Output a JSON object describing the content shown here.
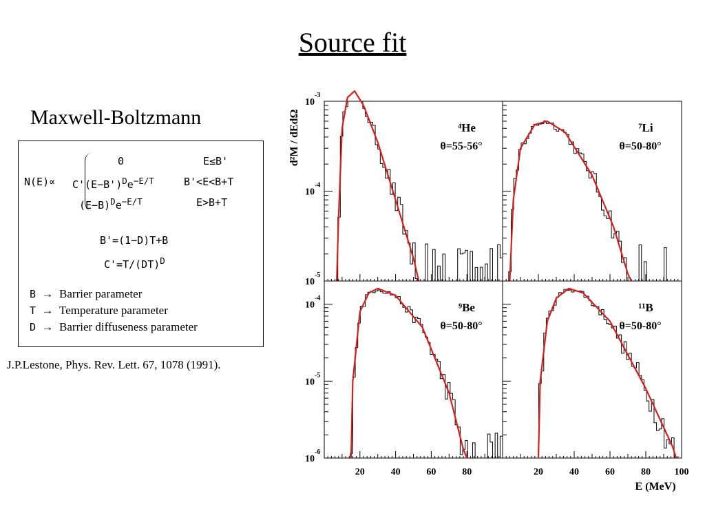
{
  "slide": {
    "title": "Source fit",
    "subtitle": "Maxwell-Boltzmann",
    "reference": "J.P.Lestone, Phys. Rev. Lett. 67, 1078 (1991)."
  },
  "formula": {
    "lhs": "N(E)∝",
    "cases": [
      {
        "expr": "0",
        "cond": "E≤B'"
      },
      {
        "expr": "C'(E−B')",
        "sup": "D",
        "expr2": "e",
        "exp": "−E/T",
        "cond": "B'<E<B+T"
      },
      {
        "expr": "(E−B)",
        "sup": "D",
        "expr2": "e",
        "exp": "−E/T",
        "cond": "E>B+T"
      }
    ],
    "eq1": "B'=(1−D)T+B",
    "eq2": "C'=T/(DT)",
    "eq2_sup": "D",
    "legend": [
      {
        "sym": "B",
        "arrow": "→",
        "desc": "Barrier parameter"
      },
      {
        "sym": "T",
        "arrow": "→",
        "desc": "Temperature parameter"
      },
      {
        "sym": "D",
        "arrow": "→",
        "desc": "Barrier diffuseness parameter"
      }
    ]
  },
  "chart_data": {
    "type": "line",
    "ylabel": "d²M / dEdΩ",
    "xlabel": "E (MeV)",
    "x_ticks": [
      "20",
      "40",
      "60",
      "80",
      "100"
    ],
    "xlim": [
      0,
      100
    ],
    "scale": "log",
    "panels": [
      {
        "label": "⁴He",
        "angle": "θ=55-56°",
        "ylim": [
          1e-05,
          0.001
        ],
        "y_ticks": [
          {
            "base": "10",
            "exp": "-3"
          },
          {
            "base": "10",
            "exp": "-4"
          },
          {
            "base": "10",
            "exp": "-5"
          }
        ],
        "peak_x": 17,
        "peak_y": 0.0013,
        "threshold_x": 7,
        "fit_points": [
          [
            7,
            1e-05
          ],
          [
            8,
            5e-05
          ],
          [
            10,
            0.0005
          ],
          [
            13,
            0.0011
          ],
          [
            17,
            0.0013
          ],
          [
            22,
            0.0009
          ],
          [
            30,
            0.00035
          ],
          [
            40,
            8e-05
          ],
          [
            50,
            1.8e-05
          ],
          [
            53,
            1e-05
          ]
        ]
      },
      {
        "label": "⁷Li",
        "angle": "θ=50-80°",
        "ylim": [
          1e-05,
          0.001
        ],
        "y_ticks": [],
        "peak_x": 25,
        "peak_y": 0.0006,
        "threshold_x": 4,
        "fit_points": [
          [
            4,
            1e-05
          ],
          [
            6,
            8e-05
          ],
          [
            10,
            0.0003
          ],
          [
            18,
            0.00055
          ],
          [
            25,
            0.0006
          ],
          [
            35,
            0.00045
          ],
          [
            50,
            0.00015
          ],
          [
            62,
            4e-05
          ],
          [
            70,
            1.2e-05
          ],
          [
            72,
            1e-05
          ]
        ]
      },
      {
        "label": "⁹Be",
        "angle": "θ=50-80°",
        "ylim": [
          1e-06,
          0.0002
        ],
        "y_ticks": [
          {
            "base": "10",
            "exp": "-4"
          },
          {
            "base": "10",
            "exp": "-5"
          },
          {
            "base": "10",
            "exp": "-6"
          }
        ],
        "peak_x": 30,
        "peak_y": 0.00016,
        "threshold_x": 15,
        "fit_points": [
          [
            15,
            1e-06
          ],
          [
            16,
            1e-05
          ],
          [
            20,
            8e-05
          ],
          [
            25,
            0.00014
          ],
          [
            30,
            0.00016
          ],
          [
            40,
            0.00013
          ],
          [
            55,
            5e-05
          ],
          [
            70,
            7e-06
          ],
          [
            78,
            1.3e-06
          ],
          [
            80,
            1e-06
          ]
        ]
      },
      {
        "label": "¹¹B",
        "angle": "θ=50-80°",
        "ylim": [
          1e-06,
          0.0002
        ],
        "y_ticks": [],
        "peak_x": 37,
        "peak_y": 0.00016,
        "threshold_x": 20,
        "fit_points": [
          [
            20,
            1e-06
          ],
          [
            21,
            1e-05
          ],
          [
            25,
            6e-05
          ],
          [
            30,
            0.00012
          ],
          [
            37,
            0.00016
          ],
          [
            45,
            0.00014
          ],
          [
            60,
            6e-05
          ],
          [
            80,
            8e-06
          ],
          [
            95,
            1.4e-06
          ],
          [
            97,
            1e-06
          ]
        ]
      }
    ]
  },
  "colors": {
    "fit": "#d41f1f",
    "histogram": "#000000"
  }
}
